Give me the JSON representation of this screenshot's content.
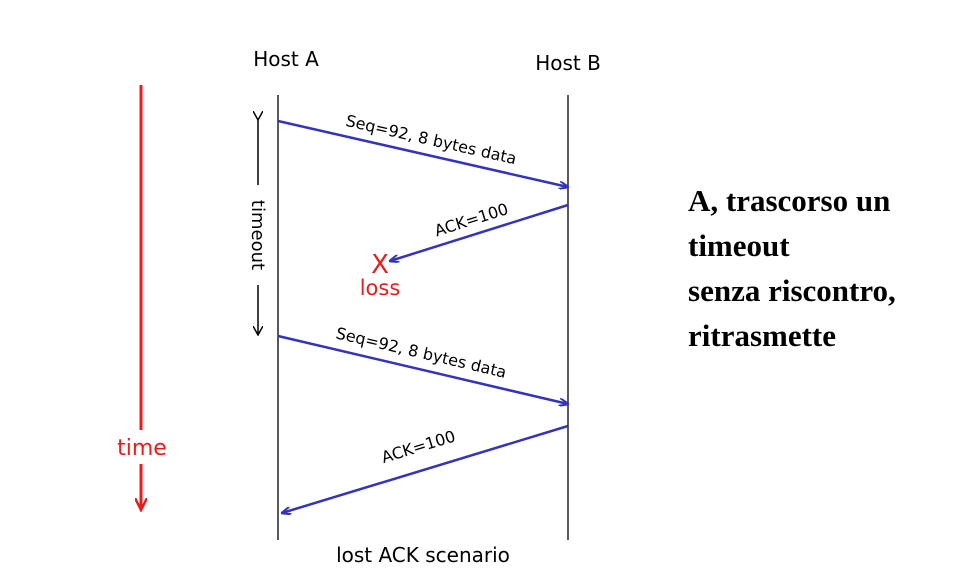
{
  "hosts": {
    "a": "Host A",
    "b": "Host B"
  },
  "messages": {
    "seq1": "Seq=92, 8 bytes data",
    "ack1": "ACK=100",
    "seq2": "Seq=92, 8 bytes data",
    "ack2": "ACK=100"
  },
  "timeout_label": "timeout",
  "loss": {
    "mark": "X",
    "label": "loss"
  },
  "time_label": "time",
  "caption": "lost ACK scenario",
  "note_lines": [
    "A, trascorso un",
    "timeout",
    "senza riscontro,",
    "ritrasmette"
  ],
  "colors": {
    "message_arrow": "#3333bb",
    "time_arrow": "#e41e1e",
    "loss": "#e41e1e",
    "timeline": "#000000"
  }
}
